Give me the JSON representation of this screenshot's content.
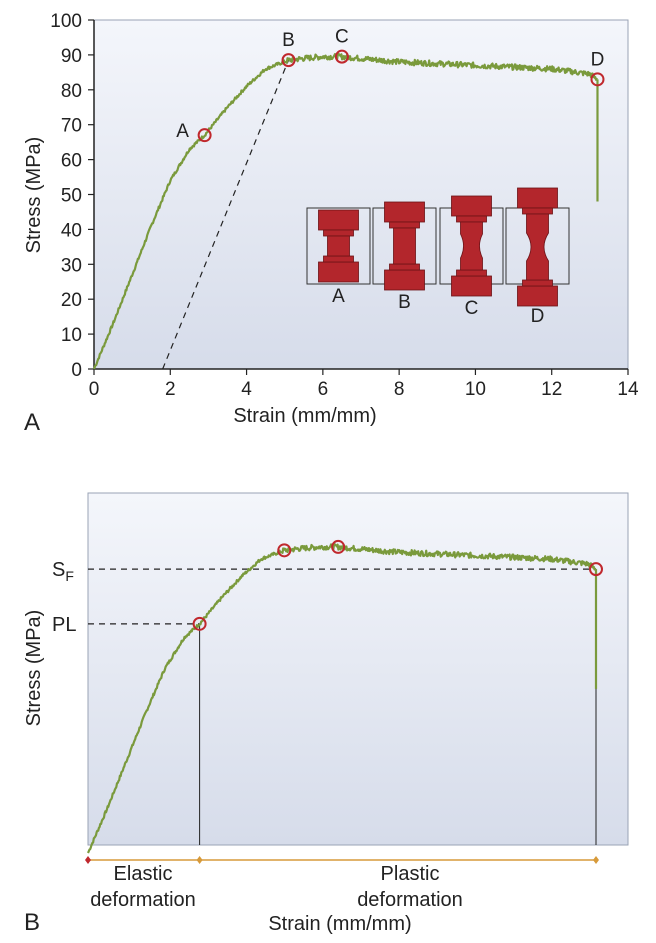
{
  "colors": {
    "curve": "#7a9a3c",
    "marker": "#c0282d",
    "specimen": "#b3262c",
    "plot_bg_top": "#f4f6fb",
    "plot_bg_bottom": "#d6dcea",
    "arrow": "#d79a3a"
  },
  "chart_data": [
    {
      "type": "line",
      "panel_label": "A",
      "xlabel": "Strain (mm/mm)",
      "ylabel": "Stress (MPa)",
      "xlim": [
        0,
        14
      ],
      "ylim": [
        0,
        100
      ],
      "x_ticks": [
        0,
        2,
        4,
        6,
        8,
        10,
        12,
        14
      ],
      "x_tick_labels": [
        "0",
        "2",
        "4",
        "6",
        "8",
        "10",
        "12",
        "14"
      ],
      "y_ticks": [
        0,
        10,
        20,
        30,
        40,
        50,
        60,
        70,
        80,
        90,
        100
      ],
      "y_tick_labels": [
        "0",
        "10",
        "20",
        "30",
        "40",
        "50",
        "60",
        "70",
        "80",
        "90",
        "100"
      ],
      "grid": false,
      "series": [
        {
          "x": [
            0,
            0.5,
            1.0,
            1.5,
            2.0,
            2.5,
            2.9,
            3.5,
            4.0,
            4.5,
            5.1,
            5.5,
            6.0,
            6.5,
            7.0,
            8.0,
            9.0,
            10.0,
            11.0,
            12.0,
            13.0,
            13.2
          ],
          "y": [
            0,
            13,
            27,
            41,
            54,
            63,
            67,
            75,
            81,
            86,
            88.5,
            89,
            89.5,
            89.5,
            89,
            88,
            87.5,
            87,
            86.5,
            86,
            84.5,
            83
          ]
        }
      ],
      "fracture_drop": {
        "x": 13.2,
        "y_from": 83,
        "y_to": 48
      },
      "points": [
        {
          "label": "A",
          "x": 2.9,
          "y": 67
        },
        {
          "label": "B",
          "x": 5.1,
          "y": 88.5
        },
        {
          "label": "C",
          "x": 6.5,
          "y": 89.5
        },
        {
          "label": "D",
          "x": 13.2,
          "y": 83
        }
      ],
      "offset_line": {
        "x1": 1.8,
        "y1": 0,
        "x2": 5.1,
        "y2": 88.5
      },
      "specimens": [
        {
          "label": "A",
          "shape": "elastic"
        },
        {
          "label": "B",
          "shape": "yield"
        },
        {
          "label": "C",
          "shape": "necking"
        },
        {
          "label": "D",
          "shape": "fracture"
        }
      ]
    },
    {
      "type": "line",
      "panel_label": "B",
      "xlabel": "Strain (mm/mm)",
      "ylabel": "Stress (MPa)",
      "xlim": [
        0,
        14
      ],
      "ylim": [
        0,
        100
      ],
      "grid": false,
      "series": [
        {
          "x": [
            0,
            0.5,
            1.0,
            1.5,
            2.0,
            2.5,
            2.9,
            3.5,
            4.0,
            4.5,
            5.1,
            5.5,
            6.0,
            6.5,
            7.0,
            8.0,
            9.0,
            10.0,
            11.0,
            12.0,
            13.0,
            13.2
          ],
          "y": [
            0,
            13,
            27,
            41,
            54,
            63,
            67,
            75,
            81,
            86,
            88.5,
            89,
            89.5,
            89.5,
            89,
            88,
            87.5,
            87,
            86.5,
            86,
            84.5,
            83
          ]
        }
      ],
      "fracture_drop": {
        "x": 13.2,
        "y_from": 83,
        "y_to": 48
      },
      "points": [
        {
          "x": 2.9,
          "y": 67
        },
        {
          "x": 5.1,
          "y": 88.5
        },
        {
          "x": 6.5,
          "y": 89.5
        },
        {
          "x": 13.2,
          "y": 83
        }
      ],
      "reference_lines": [
        {
          "label": "S",
          "subscript": "F",
          "y": 83
        },
        {
          "label": "PL",
          "y": 67
        }
      ],
      "regions": [
        {
          "label_line1": "Elastic",
          "label_line2": "deformation",
          "x_from": 0,
          "x_to": 2.9
        },
        {
          "label_line1": "Plastic",
          "label_line2": "deformation",
          "x_from": 2.9,
          "x_to": 13.2
        }
      ]
    }
  ]
}
